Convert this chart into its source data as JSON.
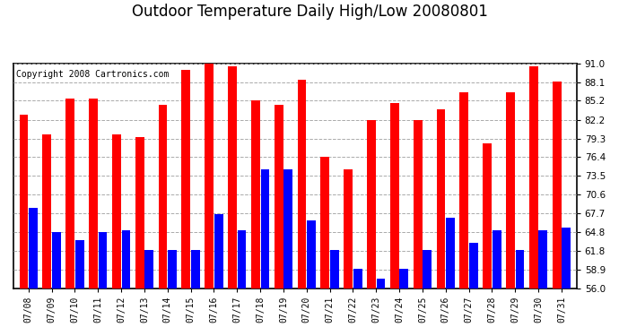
{
  "title": "Outdoor Temperature Daily High/Low 20080801",
  "copyright": "Copyright 2008 Cartronics.com",
  "dates": [
    "07/08",
    "07/09",
    "07/10",
    "07/11",
    "07/12",
    "07/13",
    "07/14",
    "07/15",
    "07/16",
    "07/17",
    "07/18",
    "07/19",
    "07/20",
    "07/21",
    "07/22",
    "07/23",
    "07/24",
    "07/25",
    "07/26",
    "07/27",
    "07/28",
    "07/29",
    "07/30",
    "07/31"
  ],
  "highs": [
    83.0,
    80.0,
    85.5,
    85.5,
    80.0,
    79.5,
    84.5,
    90.0,
    91.0,
    90.5,
    85.2,
    84.5,
    88.5,
    76.5,
    74.5,
    82.2,
    84.8,
    82.2,
    83.8,
    86.5,
    78.5,
    86.5,
    90.5,
    88.2
  ],
  "lows": [
    68.5,
    64.8,
    63.5,
    64.8,
    65.0,
    62.0,
    62.0,
    62.0,
    67.5,
    65.0,
    74.5,
    74.5,
    66.5,
    62.0,
    59.0,
    57.5,
    59.0,
    62.0,
    67.0,
    63.0,
    65.0,
    62.0,
    65.0,
    65.5
  ],
  "ylim_min": 56.0,
  "ylim_max": 91.0,
  "yticks": [
    56.0,
    58.9,
    61.8,
    64.8,
    67.7,
    70.6,
    73.5,
    76.4,
    79.3,
    82.2,
    85.2,
    88.1,
    91.0
  ],
  "high_color": "#ff0000",
  "low_color": "#0000ff",
  "bg_color": "#ffffff",
  "grid_color": "#aaaaaa",
  "title_fontsize": 12,
  "copyright_fontsize": 7
}
